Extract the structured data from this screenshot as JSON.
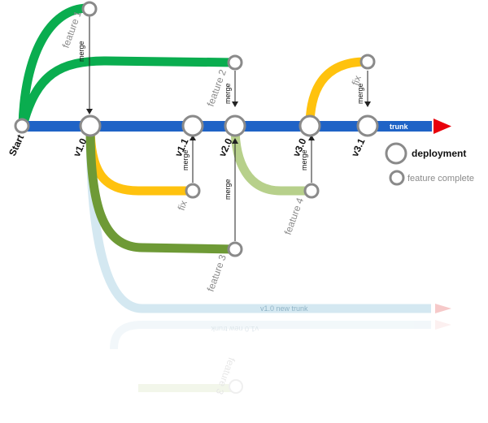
{
  "labels": {
    "start": "Start",
    "v1_0": "v1.0",
    "v1_1": "v1.1",
    "v2_0": "v2.0",
    "v3_0": "v3.0",
    "v3_1": "v3.1",
    "feature_1": "feature 1",
    "feature_2": "feature 2",
    "feature_3": "feature 3",
    "feature_4": "feature 4",
    "fix_a": "fix",
    "fix_b": "fix",
    "merge": "merge",
    "trunk": "trunk",
    "new_trunk": "v1.0 new trunk"
  },
  "legend": {
    "deployment": "deployment",
    "feature_complete": "feature complete"
  },
  "colors": {
    "trunk": "#1f63c6",
    "arrow": "#e8000b",
    "feature_green": "#0aad4f",
    "fix_yellow": "#ffc20e",
    "feature3_olive": "#6e9a36",
    "feature4_light": "#b7d08b",
    "new_trunk": "#cfe6ef",
    "node_stroke": "#8a8a8a"
  }
}
